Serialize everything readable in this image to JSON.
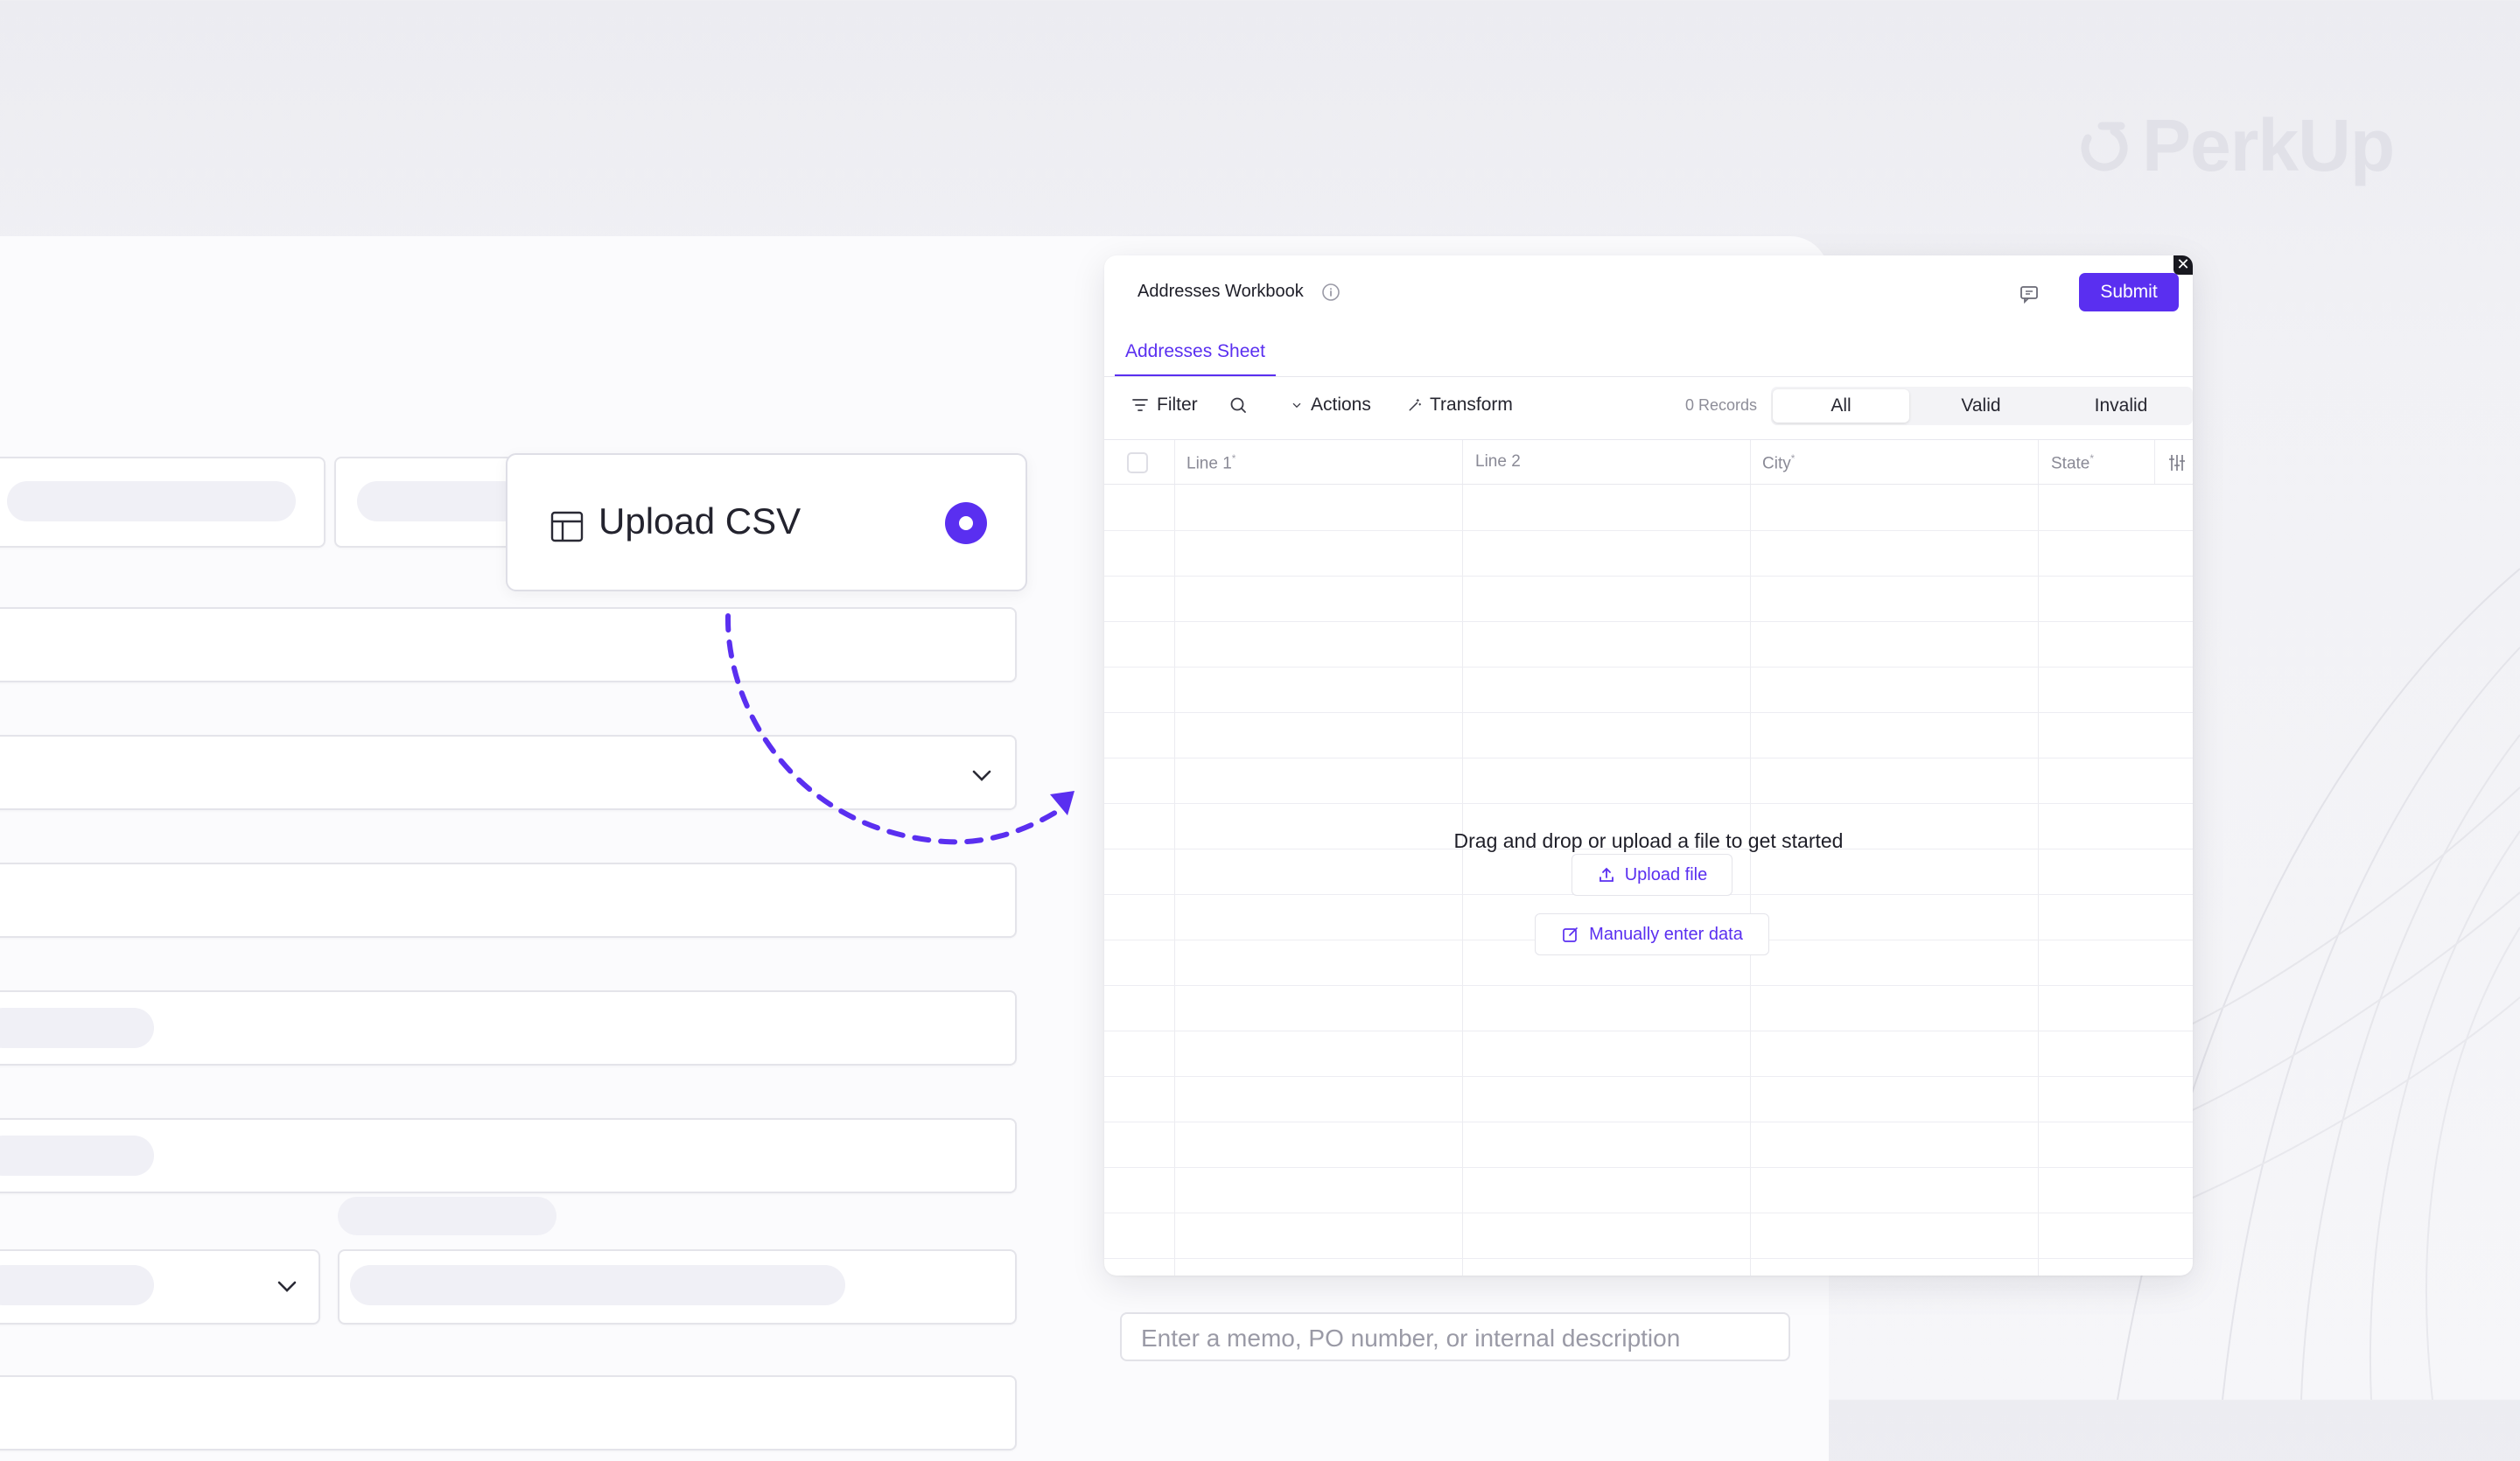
{
  "brand": {
    "name": "PerkUp"
  },
  "upload_option": {
    "label": "Upload CSV",
    "selected": true
  },
  "memo": {
    "placeholder": "Enter a memo, PO number, or internal description"
  },
  "workbook": {
    "title": "Addresses Workbook",
    "submit_label": "Submit",
    "close_label": "✕",
    "sheet_tab": "Addresses Sheet",
    "toolbar": {
      "filter": "Filter",
      "actions": "Actions",
      "transform": "Transform",
      "records": "0 Records",
      "segments": [
        "All",
        "Valid",
        "Invalid"
      ],
      "active_segment": "All"
    },
    "columns": [
      {
        "label": "Line 1",
        "required": true
      },
      {
        "label": "Line 2",
        "required": false
      },
      {
        "label": "City",
        "required": true
      },
      {
        "label": "State",
        "required": true
      }
    ],
    "empty_state": {
      "message": "Drag and drop or upload a file to get started",
      "upload_file": "Upload file",
      "manual_entry": "Manually enter data"
    }
  },
  "colors": {
    "accent": "#5a2ff0"
  }
}
